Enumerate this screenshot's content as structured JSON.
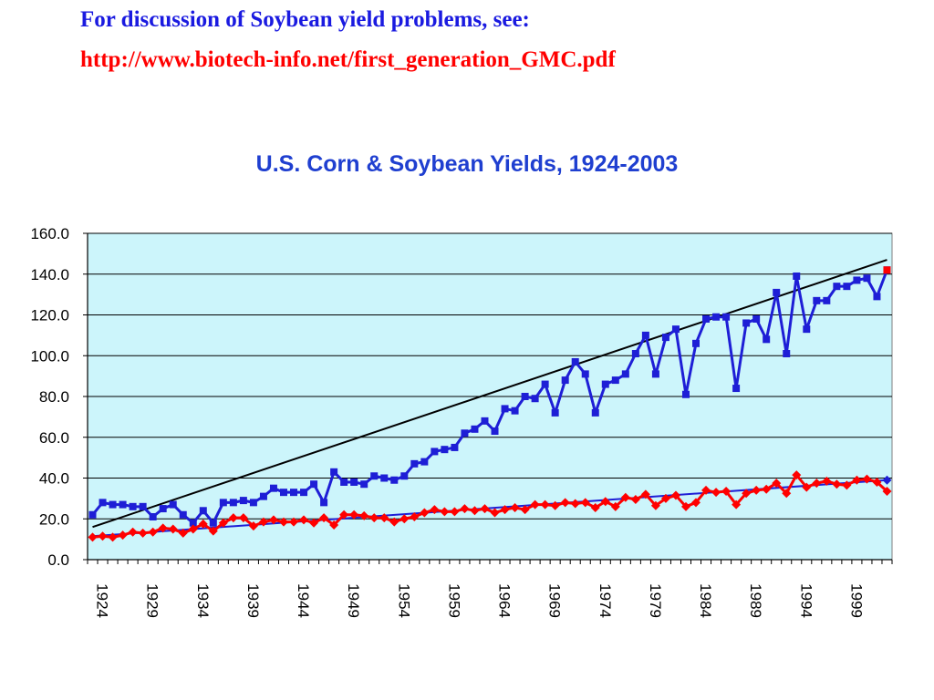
{
  "header": {
    "heading": "For discussion of Soybean yield problems, see:",
    "link": "http://www.biotech-info.net/first_generation_GMC.pdf"
  },
  "chart_data": {
    "type": "line",
    "title": "U.S. Corn & Soybean Yields, 1924-2003",
    "xlabel": "",
    "ylabel": "",
    "ylim": [
      0,
      160
    ],
    "y_ticks": [
      "0.0",
      "20.0",
      "40.0",
      "60.0",
      "80.0",
      "100.0",
      "120.0",
      "140.0",
      "160.0"
    ],
    "x_ticks": [
      "1924",
      "1929",
      "1934",
      "1939",
      "1944",
      "1949",
      "1954",
      "1959",
      "1964",
      "1969",
      "1974",
      "1979",
      "1984",
      "1989",
      "1994",
      "1999"
    ],
    "grid": "horizontal",
    "plot_background": "#ccf5fb",
    "x_start": 1924,
    "series": [
      {
        "color": "#1e1ed6",
        "marker": "square",
        "values": [
          22,
          28,
          27,
          27,
          26,
          26,
          21,
          25,
          27,
          22,
          18,
          24,
          18,
          28,
          28,
          29,
          28,
          31,
          35,
          33,
          33,
          33,
          37,
          28,
          43,
          38,
          38,
          37,
          41,
          40,
          39,
          41,
          47,
          48,
          53,
          54,
          55,
          62,
          64,
          68,
          63,
          74,
          73,
          80,
          79,
          86,
          72,
          88,
          97,
          91,
          72,
          86,
          88,
          91,
          101,
          110,
          91,
          109,
          113,
          81,
          106,
          118,
          119,
          119,
          84,
          116,
          118,
          108,
          131,
          101,
          139,
          113,
          127,
          127,
          134,
          134,
          137,
          138,
          129,
          142
        ]
      },
      {
        "color": "#ff0000",
        "marker": "diamond",
        "values": [
          11,
          11.5,
          11,
          12,
          13.5,
          13,
          13.5,
          15.5,
          15,
          13,
          15,
          17.5,
          14,
          18,
          20.5,
          20.5,
          16.5,
          18.5,
          19.5,
          18.5,
          18.5,
          19.5,
          18,
          20.5,
          17,
          22,
          22,
          21.5,
          20.5,
          20.5,
          18.5,
          20,
          21,
          23,
          24.5,
          23.5,
          23.5,
          25,
          24,
          25,
          23,
          24.5,
          25.5,
          24.5,
          27,
          27,
          26.5,
          28,
          27.5,
          28,
          25.5,
          28.5,
          26,
          30.5,
          29.5,
          32,
          26.5,
          30,
          31.5,
          26,
          28,
          34,
          33,
          33.5,
          27,
          32.5,
          34,
          34.5,
          37.5,
          32.5,
          41.5,
          35.5,
          37.5,
          38.5,
          37,
          36.5,
          39,
          39.5,
          38,
          33.5
        ]
      }
    ],
    "trend_lines": [
      {
        "color": "#000000",
        "from": [
          1924,
          16
        ],
        "to": [
          2003,
          147
        ]
      },
      {
        "color": "#1e1ed6",
        "from": [
          1924,
          11.5
        ],
        "to": [
          2003,
          39
        ]
      }
    ],
    "end_markers": [
      {
        "color": "#ff0000",
        "marker": "square",
        "x": 2003,
        "y": 142
      },
      {
        "color": "#1e1ed6",
        "marker": "diamond",
        "x": 2003,
        "y": 39
      }
    ]
  }
}
